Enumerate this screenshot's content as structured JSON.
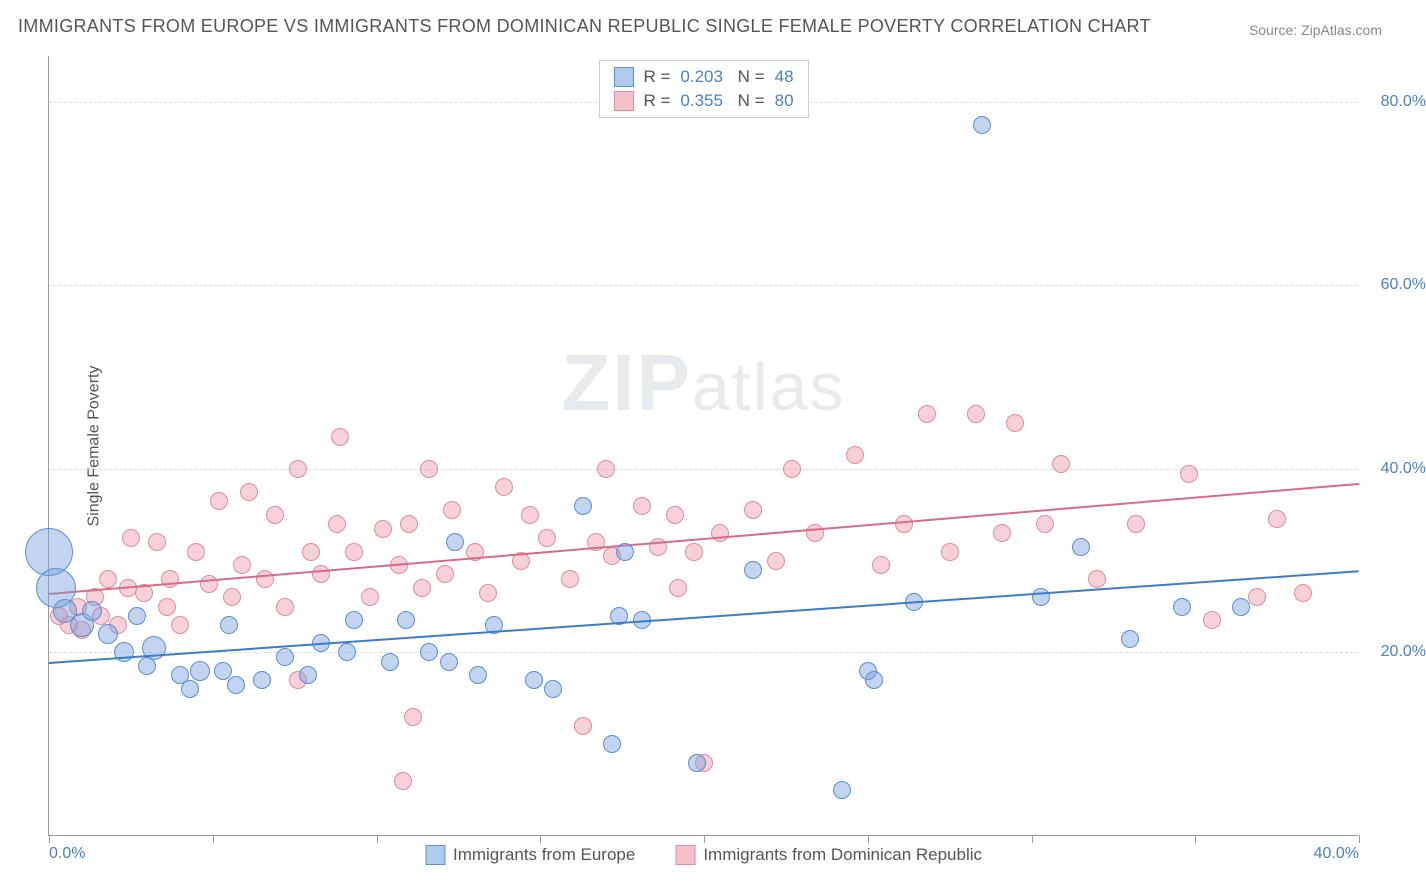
{
  "title": "IMMIGRANTS FROM EUROPE VS IMMIGRANTS FROM DOMINICAN REPUBLIC SINGLE FEMALE POVERTY CORRELATION CHART",
  "source_label": "Source: ZipAtlas.com",
  "watermark": {
    "bold": "ZIP",
    "rest": "atlas"
  },
  "y_axis": {
    "title": "Single Female Poverty",
    "min": 0.0,
    "max": 85.0,
    "ticks": [
      {
        "value": 20.0,
        "label": "20.0%"
      },
      {
        "value": 40.0,
        "label": "40.0%"
      },
      {
        "value": 60.0,
        "label": "60.0%"
      },
      {
        "value": 80.0,
        "label": "80.0%"
      }
    ]
  },
  "x_axis": {
    "min": 0.0,
    "max": 40.0,
    "tick_positions": [
      0.0,
      5.0,
      10.0,
      15.0,
      20.0,
      25.0,
      30.0,
      35.0,
      40.0
    ],
    "end_labels": [
      {
        "value": 0.0,
        "label": "0.0%"
      },
      {
        "value": 40.0,
        "label": "40.0%"
      }
    ]
  },
  "series": {
    "europe": {
      "label": "Immigrants from Europe",
      "fill_color": "rgba(120,160,220,0.45)",
      "stroke_color": "#5a8fd0",
      "swatch_fill": "#aecaef",
      "swatch_border": "#5a8fd0",
      "marker_radius": 9,
      "R": "0.203",
      "N": "48",
      "trend": {
        "x1": 0.0,
        "y1": 19.0,
        "x2": 40.0,
        "y2": 29.0,
        "color": "#3d7cc9",
        "width": 2
      },
      "points": [
        {
          "x": 0.0,
          "y": 31.0,
          "r": 24
        },
        {
          "x": 0.2,
          "y": 27.0,
          "r": 20
        },
        {
          "x": 0.5,
          "y": 24.5,
          "r": 12
        },
        {
          "x": 1.0,
          "y": 23.0,
          "r": 12
        },
        {
          "x": 1.3,
          "y": 24.5,
          "r": 10
        },
        {
          "x": 1.8,
          "y": 22.0,
          "r": 10
        },
        {
          "x": 2.3,
          "y": 20.0,
          "r": 10
        },
        {
          "x": 2.7,
          "y": 24.0,
          "r": 9
        },
        {
          "x": 3.2,
          "y": 20.5,
          "r": 12
        },
        {
          "x": 3.0,
          "y": 18.5,
          "r": 9
        },
        {
          "x": 4.0,
          "y": 17.5,
          "r": 9
        },
        {
          "x": 4.6,
          "y": 18.0,
          "r": 10
        },
        {
          "x": 4.3,
          "y": 16.0,
          "r": 9
        },
        {
          "x": 5.3,
          "y": 18.0,
          "r": 9
        },
        {
          "x": 5.7,
          "y": 16.5,
          "r": 9
        },
        {
          "x": 5.5,
          "y": 23.0,
          "r": 9
        },
        {
          "x": 6.5,
          "y": 17.0,
          "r": 9
        },
        {
          "x": 7.2,
          "y": 19.5,
          "r": 9
        },
        {
          "x": 7.9,
          "y": 17.5,
          "r": 9
        },
        {
          "x": 8.3,
          "y": 21.0,
          "r": 9
        },
        {
          "x": 9.1,
          "y": 20.0,
          "r": 9
        },
        {
          "x": 9.3,
          "y": 23.5,
          "r": 9
        },
        {
          "x": 10.4,
          "y": 19.0,
          "r": 9
        },
        {
          "x": 10.9,
          "y": 23.5,
          "r": 9
        },
        {
          "x": 11.6,
          "y": 20.0,
          "r": 9
        },
        {
          "x": 12.4,
          "y": 32.0,
          "r": 9
        },
        {
          "x": 12.2,
          "y": 19.0,
          "r": 9
        },
        {
          "x": 13.1,
          "y": 17.5,
          "r": 9
        },
        {
          "x": 13.6,
          "y": 23.0,
          "r": 9
        },
        {
          "x": 14.8,
          "y": 17.0,
          "r": 9
        },
        {
          "x": 15.4,
          "y": 16.0,
          "r": 9
        },
        {
          "x": 16.3,
          "y": 36.0,
          "r": 9
        },
        {
          "x": 17.2,
          "y": 10.0,
          "r": 9
        },
        {
          "x": 17.4,
          "y": 24.0,
          "r": 9
        },
        {
          "x": 17.6,
          "y": 31.0,
          "r": 9
        },
        {
          "x": 18.1,
          "y": 23.5,
          "r": 9
        },
        {
          "x": 19.8,
          "y": 8.0,
          "r": 9
        },
        {
          "x": 21.5,
          "y": 29.0,
          "r": 9
        },
        {
          "x": 24.2,
          "y": 5.0,
          "r": 9
        },
        {
          "x": 25.0,
          "y": 18.0,
          "r": 9
        },
        {
          "x": 25.2,
          "y": 17.0,
          "r": 9
        },
        {
          "x": 26.4,
          "y": 25.5,
          "r": 9
        },
        {
          "x": 28.5,
          "y": 77.5,
          "r": 9
        },
        {
          "x": 30.3,
          "y": 26.0,
          "r": 9
        },
        {
          "x": 31.5,
          "y": 31.5,
          "r": 9
        },
        {
          "x": 33.0,
          "y": 21.5,
          "r": 9
        },
        {
          "x": 34.6,
          "y": 25.0,
          "r": 9
        },
        {
          "x": 36.4,
          "y": 25.0,
          "r": 9
        }
      ]
    },
    "dominican": {
      "label": "Immigrants from Dominican Republic",
      "fill_color": "rgba(240,150,170,0.45)",
      "stroke_color": "#e08bA0",
      "swatch_fill": "#f5c0cc",
      "swatch_border": "#e08bA0",
      "marker_radius": 9,
      "R": "0.355",
      "N": "80",
      "trend": {
        "x1": 0.0,
        "y1": 26.5,
        "x2": 40.0,
        "y2": 38.5,
        "color": "#d96b8a",
        "width": 2
      },
      "points": [
        {
          "x": 0.3,
          "y": 24.0
        },
        {
          "x": 0.6,
          "y": 23.0
        },
        {
          "x": 0.9,
          "y": 25.0
        },
        {
          "x": 1.0,
          "y": 22.5
        },
        {
          "x": 1.4,
          "y": 26.0
        },
        {
          "x": 1.8,
          "y": 28.0
        },
        {
          "x": 1.6,
          "y": 24.0
        },
        {
          "x": 2.1,
          "y": 23.0
        },
        {
          "x": 2.4,
          "y": 27.0
        },
        {
          "x": 2.5,
          "y": 32.5
        },
        {
          "x": 2.9,
          "y": 26.5
        },
        {
          "x": 3.3,
          "y": 32.0
        },
        {
          "x": 3.7,
          "y": 28.0
        },
        {
          "x": 3.6,
          "y": 25.0
        },
        {
          "x": 4.0,
          "y": 23.0
        },
        {
          "x": 4.5,
          "y": 31.0
        },
        {
          "x": 4.9,
          "y": 27.5
        },
        {
          "x": 5.2,
          "y": 36.5
        },
        {
          "x": 5.6,
          "y": 26.0
        },
        {
          "x": 5.9,
          "y": 29.5
        },
        {
          "x": 6.1,
          "y": 37.5
        },
        {
          "x": 6.6,
          "y": 28.0
        },
        {
          "x": 6.9,
          "y": 35.0
        },
        {
          "x": 7.2,
          "y": 25.0
        },
        {
          "x": 7.6,
          "y": 17.0
        },
        {
          "x": 7.6,
          "y": 40.0
        },
        {
          "x": 8.0,
          "y": 31.0
        },
        {
          "x": 8.3,
          "y": 28.5
        },
        {
          "x": 8.9,
          "y": 43.5
        },
        {
          "x": 8.8,
          "y": 34.0
        },
        {
          "x": 9.3,
          "y": 31.0
        },
        {
          "x": 9.8,
          "y": 26.0
        },
        {
          "x": 10.2,
          "y": 33.5
        },
        {
          "x": 10.7,
          "y": 29.5
        },
        {
          "x": 11.0,
          "y": 34.0
        },
        {
          "x": 11.4,
          "y": 27.0
        },
        {
          "x": 11.1,
          "y": 13.0
        },
        {
          "x": 11.6,
          "y": 40.0
        },
        {
          "x": 12.1,
          "y": 28.5
        },
        {
          "x": 12.3,
          "y": 35.5
        },
        {
          "x": 13.0,
          "y": 31.0
        },
        {
          "x": 13.4,
          "y": 26.5
        },
        {
          "x": 13.9,
          "y": 38.0
        },
        {
          "x": 10.8,
          "y": 6.0
        },
        {
          "x": 14.4,
          "y": 30.0
        },
        {
          "x": 14.7,
          "y": 35.0
        },
        {
          "x": 15.2,
          "y": 32.5
        },
        {
          "x": 15.9,
          "y": 28.0
        },
        {
          "x": 16.3,
          "y": 12.0
        },
        {
          "x": 16.7,
          "y": 32.0
        },
        {
          "x": 17.2,
          "y": 30.5
        },
        {
          "x": 17.0,
          "y": 40.0
        },
        {
          "x": 18.1,
          "y": 36.0
        },
        {
          "x": 18.6,
          "y": 31.5
        },
        {
          "x": 19.2,
          "y": 27.0
        },
        {
          "x": 19.1,
          "y": 35.0
        },
        {
          "x": 19.7,
          "y": 31.0
        },
        {
          "x": 20.5,
          "y": 33.0
        },
        {
          "x": 21.5,
          "y": 35.5
        },
        {
          "x": 22.2,
          "y": 30.0
        },
        {
          "x": 22.7,
          "y": 40.0
        },
        {
          "x": 20.0,
          "y": 8.0
        },
        {
          "x": 23.4,
          "y": 33.0
        },
        {
          "x": 24.6,
          "y": 41.5
        },
        {
          "x": 25.4,
          "y": 29.5
        },
        {
          "x": 26.1,
          "y": 34.0
        },
        {
          "x": 26.8,
          "y": 46.0
        },
        {
          "x": 27.5,
          "y": 31.0
        },
        {
          "x": 28.3,
          "y": 46.0
        },
        {
          "x": 29.1,
          "y": 33.0
        },
        {
          "x": 29.5,
          "y": 45.0
        },
        {
          "x": 30.4,
          "y": 34.0
        },
        {
          "x": 30.9,
          "y": 40.5
        },
        {
          "x": 32.0,
          "y": 28.0
        },
        {
          "x": 33.2,
          "y": 34.0
        },
        {
          "x": 34.8,
          "y": 39.5
        },
        {
          "x": 35.5,
          "y": 23.5
        },
        {
          "x": 36.9,
          "y": 26.0
        },
        {
          "x": 37.5,
          "y": 34.5
        },
        {
          "x": 38.3,
          "y": 26.5
        }
      ]
    }
  },
  "colors": {
    "title_text": "#555555",
    "axis_text": "#4a7fc9",
    "grid": "#dddddd",
    "border": "#999999",
    "background": "#ffffff"
  }
}
